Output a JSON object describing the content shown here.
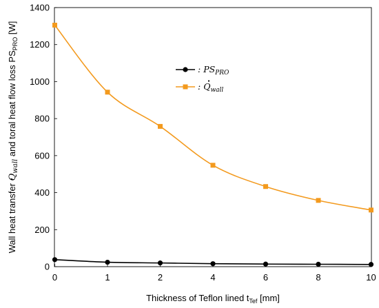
{
  "chart_data": {
    "type": "line",
    "xlabel": "Thickness of Teflon lined t",
    "xlabel_sub": "Tef",
    "xlabel_unit": " [mm]",
    "ylabel_parts": {
      "a": "Wall heat transfer ",
      "q": "Q",
      "qsub": "wall",
      "b": " and  toral heat flow loss  PS",
      "psub": "PRO",
      "c": " [W]"
    },
    "x_ticks": [
      "0",
      "1",
      "2",
      "4",
      "6",
      "8",
      "10"
    ],
    "xcat": [
      0,
      1,
      2,
      4,
      6,
      8,
      10
    ],
    "y_ticks": [
      "0",
      "200",
      "400",
      "600",
      "800",
      "1000",
      "1200",
      "1400"
    ],
    "ylim": [
      0,
      1400
    ],
    "legend_position": "upper-middle",
    "series": [
      {
        "name_main": "PS",
        "name_sub": "PRO",
        "color": "#000000",
        "marker": "circle",
        "values": [
          38,
          24,
          20,
          16,
          14,
          13,
          12
        ]
      },
      {
        "name_main": "Q",
        "name_sub": "wall",
        "color": "#F39A1E",
        "marker": "square",
        "values": [
          1305,
          943,
          758,
          548,
          433,
          358,
          306
        ]
      }
    ]
  }
}
